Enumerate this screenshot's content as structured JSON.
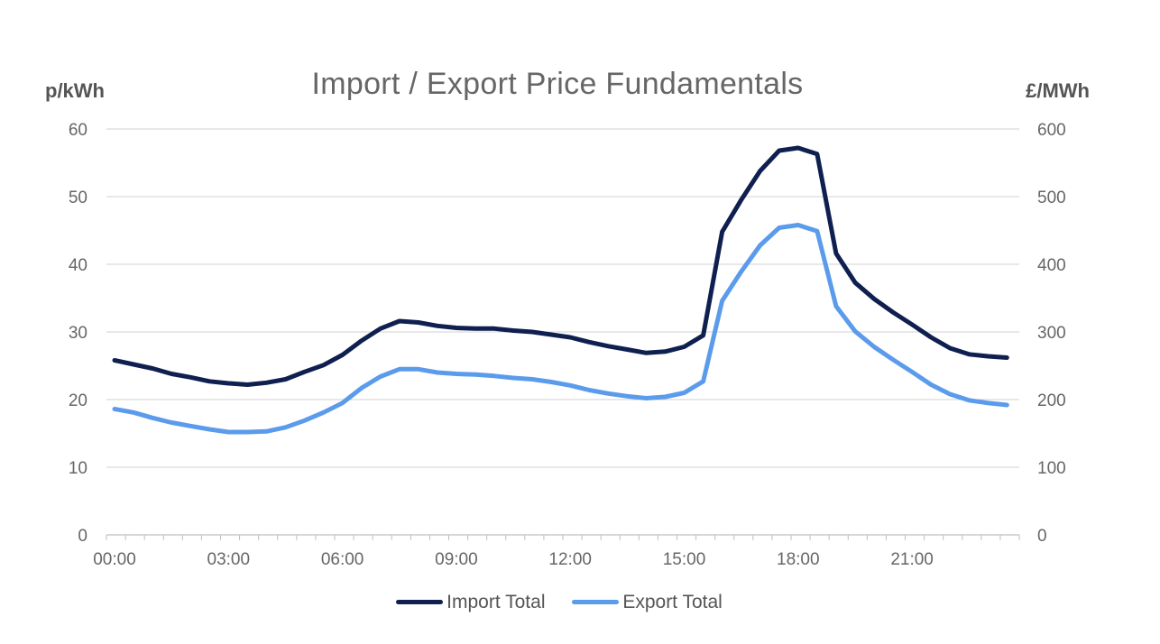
{
  "chart_data": {
    "type": "line",
    "title": "Import / Export Price Fundamentals",
    "ylabel_left": "p/kWh",
    "ylabel_right": "£/MWh",
    "ylim_left": [
      0,
      60
    ],
    "ylim_right": [
      0,
      600
    ],
    "yticks_left": [
      "0",
      "10",
      "20",
      "30",
      "40",
      "50",
      "60"
    ],
    "yticks_right": [
      "0",
      "100",
      "200",
      "300",
      "400",
      "500",
      "600"
    ],
    "xticks": [
      "00:00",
      "03:00",
      "06:00",
      "09:00",
      "12:00",
      "15:00",
      "18:00",
      "21:00"
    ],
    "grid": true,
    "legend_position": "bottom",
    "x": [
      "00:00",
      "00:30",
      "01:00",
      "01:30",
      "02:00",
      "02:30",
      "03:00",
      "03:30",
      "04:00",
      "04:30",
      "05:00",
      "05:30",
      "06:00",
      "06:30",
      "07:00",
      "07:30",
      "08:00",
      "08:30",
      "09:00",
      "09:30",
      "10:00",
      "10:30",
      "11:00",
      "11:30",
      "12:00",
      "12:30",
      "13:00",
      "13:30",
      "14:00",
      "14:30",
      "15:00",
      "15:30",
      "16:00",
      "16:30",
      "17:00",
      "17:30",
      "18:00",
      "18:30",
      "19:00",
      "19:30",
      "20:00",
      "20:30",
      "21:00",
      "21:30",
      "22:00",
      "22:30",
      "23:00",
      "23:30"
    ],
    "series": [
      {
        "name": "Import Total",
        "color": "#0f1f4f",
        "values": [
          25.8,
          25.2,
          24.6,
          23.8,
          23.3,
          22.7,
          22.4,
          22.2,
          22.5,
          23.0,
          24.1,
          25.1,
          26.6,
          28.7,
          30.5,
          31.6,
          31.4,
          30.9,
          30.6,
          30.5,
          30.5,
          30.2,
          30.0,
          29.6,
          29.2,
          28.5,
          27.9,
          27.4,
          26.9,
          27.1,
          27.8,
          29.5,
          44.8,
          49.5,
          53.8,
          56.8,
          57.2,
          56.3,
          41.6,
          37.3,
          34.9,
          32.9,
          31.1,
          29.2,
          27.6,
          26.7,
          26.4,
          26.2
        ]
      },
      {
        "name": "Export Total",
        "color": "#5b9bec",
        "values": [
          18.6,
          18.1,
          17.3,
          16.6,
          16.1,
          15.6,
          15.2,
          15.2,
          15.3,
          15.9,
          16.9,
          18.1,
          19.5,
          21.7,
          23.4,
          24.5,
          24.5,
          24.0,
          23.8,
          23.7,
          23.5,
          23.2,
          23.0,
          22.6,
          22.1,
          21.4,
          20.9,
          20.5,
          20.2,
          20.4,
          21.0,
          22.7,
          34.6,
          38.9,
          42.8,
          45.4,
          45.8,
          44.9,
          33.8,
          30.1,
          27.8,
          25.9,
          24.1,
          22.2,
          20.8,
          19.9,
          19.5,
          19.2
        ]
      }
    ]
  }
}
